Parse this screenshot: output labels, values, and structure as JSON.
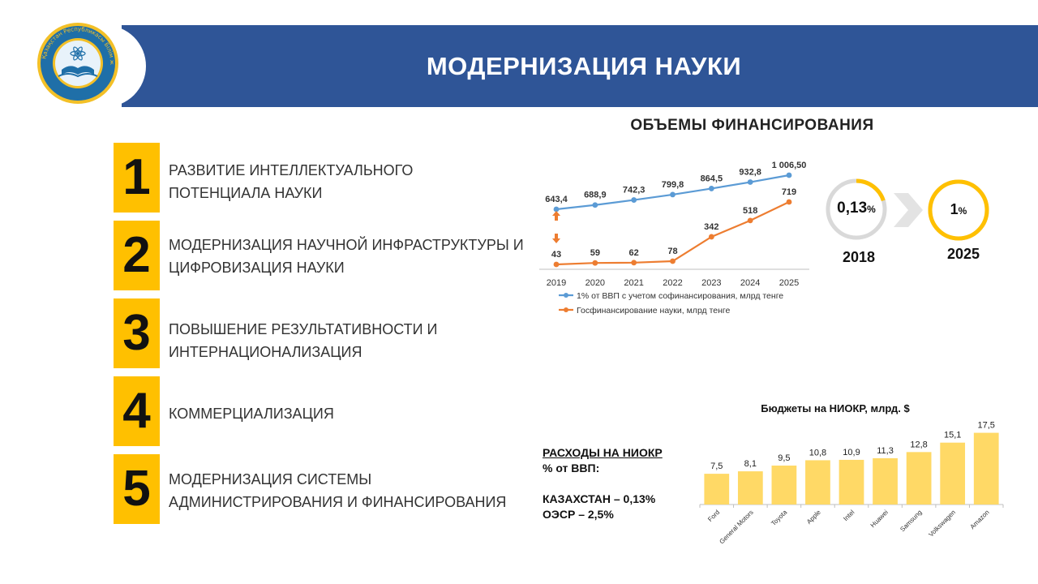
{
  "header": {
    "title": "МОДЕРНИЗАЦИЯ НАУКИ",
    "logo_text": "Қазақстан Республикасы Білім және ғылым министрлігі",
    "colors": {
      "band": "#2f5597",
      "accent": "#ffc000"
    }
  },
  "priorities": [
    {
      "number": "1",
      "line1": "РАЗВИТИЕ ИНТЕЛЛЕКТУАЛЬНОГО",
      "line2": "ПОТЕНЦИАЛА НАУКИ"
    },
    {
      "number": "2",
      "line1": "МОДЕРНИЗАЦИЯ НАУЧНОЙ ИНФРАСТРУКТУРЫ И",
      "line2": "ЦИФРОВИЗАЦИЯ НАУКИ"
    },
    {
      "number": "3",
      "line1": "ПОВЫШЕНИЕ РЕЗУЛЬТАТИВНОСТИ И",
      "line2": "ИНТЕРНАЦИОНАЛИЗАЦИЯ"
    },
    {
      "number": "4",
      "line1": "КОММЕРЦИАЛИЗАЦИЯ",
      "line2": ""
    },
    {
      "number": "5",
      "line1": "МОДЕРНИЗАЦИЯ СИСТЕМЫ",
      "line2": "АДМИНИСТРИРОВАНИЯ И ФИНАНСИРОВАНИЯ"
    }
  ],
  "funding": {
    "title": "ОБЪЕМЫ ФИНАНСИРОВАНИЯ",
    "ring_2018": {
      "value": "0,13",
      "unit": "%",
      "year": "2018",
      "fill_fraction": 0.13
    },
    "ring_2025": {
      "value": "1",
      "unit": "%",
      "year": "2025",
      "fill_fraction": 1.0
    }
  },
  "rd": {
    "title": "РАСХОДЫ НА НИОКР",
    "subtitle": "% от ВВП:",
    "kz": "КАЗАХСТАН  – 0,13%",
    "oecd": "ОЭСР – 2,5%"
  },
  "chart_data": [
    {
      "type": "line",
      "x": [
        "2019",
        "2020",
        "2021",
        "2022",
        "2023",
        "2024",
        "2025"
      ],
      "series": [
        {
          "name": "1% от ВВП с учетом софинансирования, млрд тенге",
          "color": "#5b9bd5",
          "values": [
            643.4,
            688.9,
            742.3,
            799.8,
            864.5,
            932.8,
            1006.5
          ],
          "labels": [
            "643,4",
            "688,9",
            "742,3",
            "799,8",
            "864,5",
            "932,8",
            "1 006,50"
          ]
        },
        {
          "name": "Госфинансирование науки, млрд тенге",
          "color": "#ed7d31",
          "values": [
            43,
            59,
            62,
            78,
            342,
            518,
            719
          ],
          "labels": [
            "43",
            "59",
            "62",
            "78",
            "342",
            "518",
            "719"
          ]
        }
      ],
      "legend": "bottom"
    },
    {
      "type": "bar",
      "title": "Бюджеты на НИОКР, млрд. $",
      "categories": [
        "Ford",
        "General Motors",
        "Toyota",
        "Apple",
        "Intel",
        "Huawei",
        "Samsung",
        "Volkswagen",
        "Amazon"
      ],
      "values": [
        7.5,
        8.1,
        9.5,
        10.8,
        10.9,
        11.3,
        12.8,
        15.1,
        17.5
      ],
      "labels": [
        "7,5",
        "8,1",
        "9,5",
        "10,8",
        "10,9",
        "11,3",
        "12,8",
        "15,1",
        "17,5"
      ],
      "color": "#ffd966",
      "ylim": [
        0,
        19
      ]
    }
  ]
}
